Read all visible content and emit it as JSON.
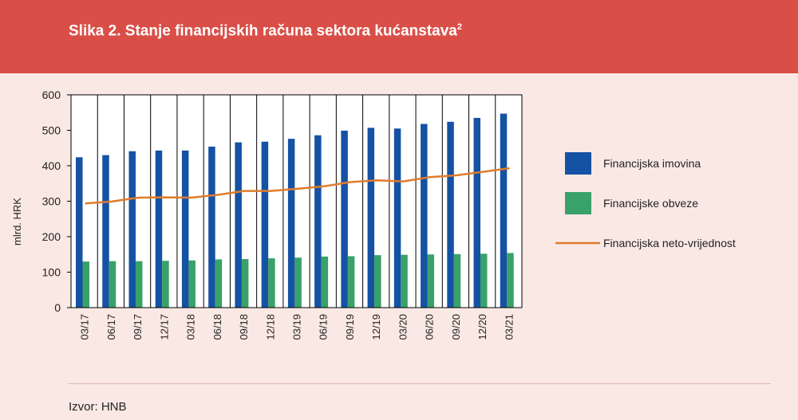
{
  "figure": {
    "title": "Slika 2. Stanje financijskih računa sektora kućanstava",
    "title_sup": "2",
    "source": "Izvor: HNB"
  },
  "colors": {
    "header": "#d94f48",
    "background": "#f9e8e3",
    "assets": "#1552a4",
    "liabilities": "#39a16a",
    "net": "#e07b2c"
  },
  "chart_data": {
    "type": "bar",
    "categories": [
      "03/17",
      "06/17",
      "09/17",
      "12/17",
      "03/18",
      "06/18",
      "09/18",
      "12/18",
      "03/19",
      "06/19",
      "09/19",
      "12/19",
      "03/20",
      "06/20",
      "09/20",
      "12/20",
      "03/21"
    ],
    "ylabel": "mlrd. HRK",
    "ylim": [
      0,
      600
    ],
    "yticks": [
      0,
      100,
      200,
      300,
      400,
      500,
      600
    ],
    "grid": "vertical",
    "legend_position": "right",
    "series": [
      {
        "name": "Financijska imovina",
        "type": "bar",
        "values": [
          424,
          430,
          441,
          443,
          443,
          454,
          466,
          468,
          476,
          486,
          499,
          507,
          505,
          518,
          524,
          535,
          547
        ]
      },
      {
        "name": "Financijske obveze",
        "type": "bar",
        "values": [
          130,
          131,
          131,
          132,
          133,
          136,
          137,
          139,
          141,
          144,
          145,
          148,
          149,
          150,
          151,
          152,
          154
        ]
      },
      {
        "name": "Financijska neto-vrijednost",
        "type": "line",
        "values": [
          294,
          299,
          310,
          311,
          310,
          318,
          329,
          329,
          335,
          342,
          354,
          359,
          356,
          368,
          373,
          383,
          393
        ]
      }
    ]
  }
}
